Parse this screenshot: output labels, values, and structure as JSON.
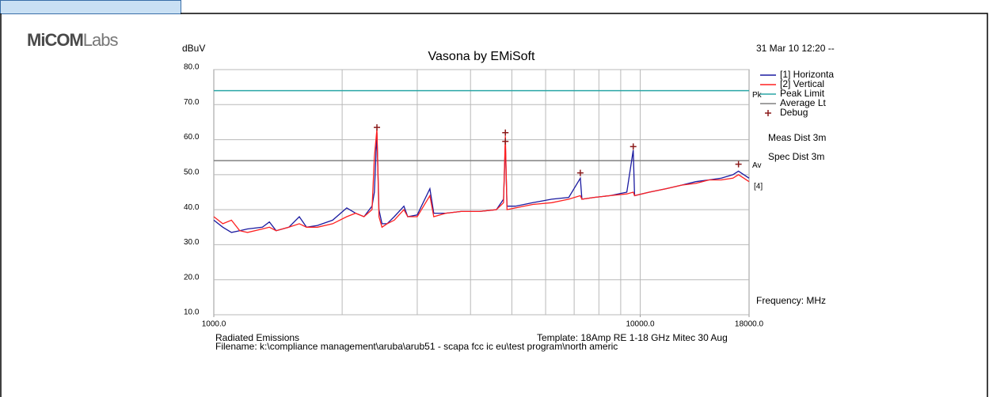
{
  "logo": {
    "bold": "MiCOM",
    "light": "Labs"
  },
  "chart_data": {
    "type": "line",
    "title": "Vasona by EMiSoft",
    "timestamp": "31 Mar 10 12:20 --",
    "y_label": "dBuV",
    "x_label": "Frequency: MHz",
    "log_x": true,
    "xlim": [
      1000,
      18000
    ],
    "ylim": [
      10,
      80
    ],
    "xticks": [
      {
        "value": 1000,
        "label": "1000.0"
      },
      {
        "value": 10000,
        "label": "10000.0"
      },
      {
        "value": 18000,
        "label": "18000.0"
      }
    ],
    "x_grid": [
      2000,
      3000,
      4000,
      5000,
      6000,
      7000,
      8000,
      9000,
      10000
    ],
    "yticks": [
      {
        "value": 10,
        "label": "10.0"
      },
      {
        "value": 20,
        "label": "20.0"
      },
      {
        "value": 30,
        "label": "30.0"
      },
      {
        "value": 40,
        "label": "40.0"
      },
      {
        "value": 50,
        "label": "50.0"
      },
      {
        "value": 60,
        "label": "60.0"
      },
      {
        "value": 70,
        "label": "70.0"
      },
      {
        "value": 80,
        "label": "80.0"
      }
    ],
    "x": [
      1000,
      1050,
      1100,
      1150,
      1200,
      1300,
      1350,
      1400,
      1500,
      1587,
      1650,
      1750,
      1900,
      2050,
      2150,
      2250,
      2350,
      2380,
      2413,
      2440,
      2480,
      2550,
      2650,
      2792,
      2850,
      3000,
      3212,
      3280,
      3500,
      3800,
      4200,
      4600,
      4780,
      4828,
      4870,
      5100,
      5600,
      6200,
      6800,
      7236,
      7300,
      7800,
      8500,
      9300,
      9630,
      9700,
      10500,
      11500,
      12500,
      13500,
      14500,
      15500,
      16500,
      17000,
      17500,
      18000
    ],
    "series": [
      {
        "name": "[1] Horizonta",
        "color": "#1a1aa0",
        "values": [
          37,
          35,
          33.5,
          34,
          34.5,
          35,
          36.5,
          34,
          35,
          38,
          35,
          35.5,
          37,
          40.5,
          39,
          38,
          41,
          45,
          62,
          40,
          36,
          36,
          38,
          41,
          38,
          38.5,
          46,
          39,
          39,
          39.5,
          39.5,
          40,
          43,
          59,
          41,
          41,
          42,
          43,
          43.5,
          49,
          43,
          43.5,
          44,
          45,
          57,
          44,
          45,
          46,
          47,
          48,
          48.5,
          49,
          50,
          51,
          50,
          49
        ]
      },
      {
        "name": "[2] Vertical",
        "color": "#ff2020",
        "values": [
          38,
          36,
          37,
          34,
          33.5,
          34.5,
          35,
          34,
          35,
          36,
          35,
          35,
          36,
          38,
          39,
          38,
          40,
          55,
          63,
          38,
          35,
          36,
          37,
          40,
          38,
          38,
          44,
          38,
          39,
          39.5,
          39.5,
          40,
          42,
          61,
          40,
          40.5,
          41.5,
          42,
          43,
          44,
          43,
          43.5,
          44,
          44.5,
          45,
          44,
          45,
          46,
          47,
          47.5,
          48.5,
          48.5,
          49,
          50,
          49,
          48
        ]
      }
    ],
    "limits": [
      {
        "name": "Peak Limit",
        "label": "Pk",
        "color": "#2aa6a6",
        "value": 74
      },
      {
        "name": "Average Lt",
        "label": "Av",
        "color": "#808080",
        "value": 54
      }
    ],
    "markers": {
      "name": "Debug",
      "color": "#8b1a1a",
      "x": [
        2413,
        4828,
        4828,
        7236,
        9630,
        17000
      ],
      "values": [
        63.5,
        62,
        59.5,
        50.5,
        58,
        53
      ]
    },
    "annotations": [
      "[4]"
    ],
    "notes": [
      "Meas Dist 3m",
      "Spec Dist 3m"
    ],
    "footer": {
      "left": "Radiated Emissions",
      "template": "Template: 18Amp RE 1-18 GHz Mitec 30 Aug",
      "filename": "Filename: k:\\compliance management\\aruba\\arub51 - scapa fcc ic eu\\test program\\north americ"
    }
  }
}
